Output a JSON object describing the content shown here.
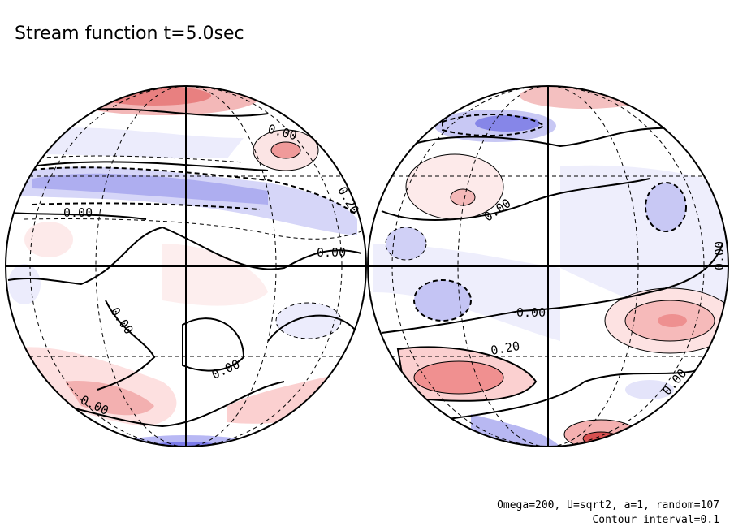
{
  "title": "Stream function t=5.0sec",
  "contour_labels": {
    "left": [
      "0.00",
      "0.20",
      "0.00",
      "0.00",
      "0.00",
      "0.00",
      "0.00"
    ],
    "right": [
      "0.00",
      "0.00",
      "0.00",
      "0.20",
      "0.00"
    ]
  },
  "footer": [
    "Omega=200, U=sqrt2, a=1, random=107",
    "Contour interval=0.1"
  ]
}
